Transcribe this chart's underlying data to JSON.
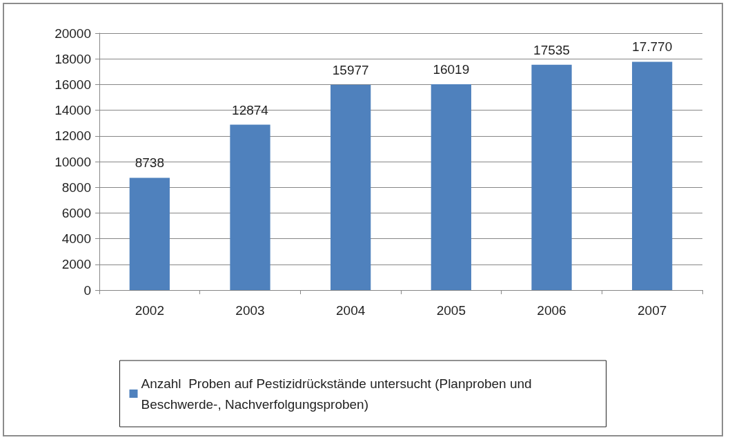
{
  "chart_data": {
    "type": "bar",
    "categories": [
      "2002",
      "2003",
      "2004",
      "2005",
      "2006",
      "2007"
    ],
    "series": [
      {
        "name": "Anzahl  Proben auf Pestizidrückstände untersucht (Planproben und Beschwerde-, Nachverfolgungsproben)",
        "color": "#4f81bd",
        "values": [
          8738,
          12874,
          15977,
          16019,
          17535,
          17770
        ],
        "value_labels": [
          "8738",
          "12874",
          "15977",
          "16019",
          "17535",
          "17.770"
        ]
      }
    ],
    "ylim": [
      0,
      20000
    ],
    "yticks": [
      0,
      2000,
      4000,
      6000,
      8000,
      10000,
      12000,
      14000,
      16000,
      18000,
      20000
    ],
    "grid": "y",
    "legend": "bottom"
  }
}
